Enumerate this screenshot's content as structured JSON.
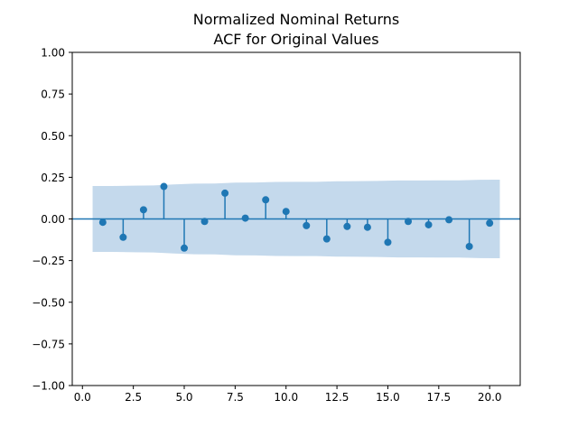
{
  "chart_data": {
    "type": "stem",
    "title_lines": [
      "Normalized Nominal Returns",
      "ACF for Original Values"
    ],
    "xlabel": "",
    "ylabel": "",
    "xlim": [
      -0.5,
      21.5
    ],
    "ylim": [
      -1.0,
      1.0
    ],
    "x_ticks": [
      0.0,
      2.5,
      5.0,
      7.5,
      10.0,
      12.5,
      15.0,
      17.5,
      20.0
    ],
    "x_tick_labels": [
      "0.0",
      "2.5",
      "5.0",
      "7.5",
      "10.0",
      "12.5",
      "15.0",
      "17.5",
      "20.0"
    ],
    "y_ticks": [
      1.0,
      0.75,
      0.5,
      0.25,
      0.0,
      -0.25,
      -0.5,
      -0.75,
      -1.0
    ],
    "y_tick_labels": [
      "1.00",
      "0.75",
      "0.50",
      "0.25",
      "0.00",
      "−0.25",
      "−0.50",
      "−0.75",
      "−1.00"
    ],
    "grid": false,
    "lags": [
      1,
      2,
      3,
      4,
      5,
      6,
      7,
      8,
      9,
      10,
      11,
      12,
      13,
      14,
      15,
      16,
      17,
      18,
      19,
      20
    ],
    "values": [
      -0.02,
      -0.11,
      0.055,
      0.195,
      -0.175,
      -0.015,
      0.155,
      0.005,
      0.115,
      0.045,
      -0.04,
      -0.12,
      -0.045,
      -0.05,
      -0.14,
      -0.015,
      -0.035,
      -0.005,
      -0.165,
      -0.025
    ],
    "confidence_band": {
      "x": [
        0.5,
        1.5,
        2.5,
        3.5,
        4.5,
        5.5,
        6.5,
        7.5,
        8.5,
        9.5,
        10.5,
        11.5,
        12.5,
        13.5,
        14.5,
        15.5,
        16.5,
        17.5,
        18.5,
        19.5,
        20.5
      ],
      "upper": [
        0.198,
        0.198,
        0.2,
        0.201,
        0.207,
        0.212,
        0.213,
        0.218,
        0.219,
        0.222,
        0.223,
        0.223,
        0.226,
        0.227,
        0.228,
        0.231,
        0.231,
        0.232,
        0.232,
        0.235,
        0.236
      ],
      "color": "#c4d9ec"
    },
    "zero_line": true,
    "colors": {
      "stem": "#1f77b4",
      "band": "#c4d9ec"
    }
  }
}
